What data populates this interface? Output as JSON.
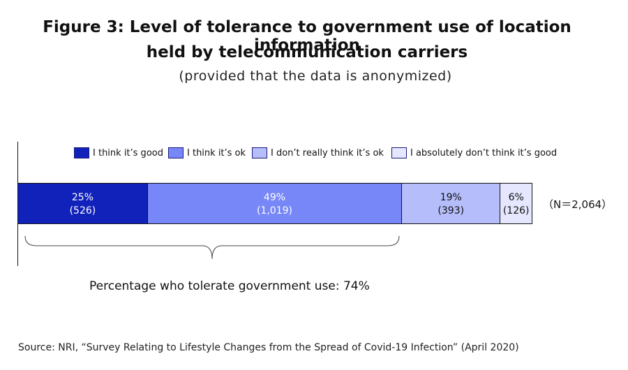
{
  "title_line1": "Figure 3: Level of tolerance to government use of location information",
  "title_line2": "held by telecommunication carriers",
  "subtitle": "(provided that the data is anonymized)",
  "n_label": "（N＝2,064）",
  "tolerate_label": "Percentage who tolerate government use: 74%",
  "source": "Source: NRI, “Survey Relating to Lifestyle Changes from the Spread of Covid-19 Infection” (April 2020)",
  "chart_data": {
    "type": "bar",
    "orientation": "horizontal-stacked-100",
    "series": [
      {
        "name": "I think it’s good",
        "percent": 25,
        "percent_label": "25%",
        "count_label": "(526)",
        "color": "#1122bb",
        "text_color": "#ffffff"
      },
      {
        "name": "I think it’s ok",
        "percent": 49,
        "percent_label": "49%",
        "count_label": "(1,019)",
        "color": "#7787f7",
        "text_color": "#ffffff"
      },
      {
        "name": "I don’t really think it’s ok",
        "percent": 19,
        "percent_label": "19%",
        "count_label": "(393)",
        "color": "#b5bdfb",
        "text_color": "#111111"
      },
      {
        "name": "I absolutely don’t think it’s good",
        "percent": 6,
        "percent_label": "6%",
        "count_label": "(126)",
        "color": "#e4e7fd",
        "text_color": "#111111"
      }
    ],
    "legend": "top"
  }
}
